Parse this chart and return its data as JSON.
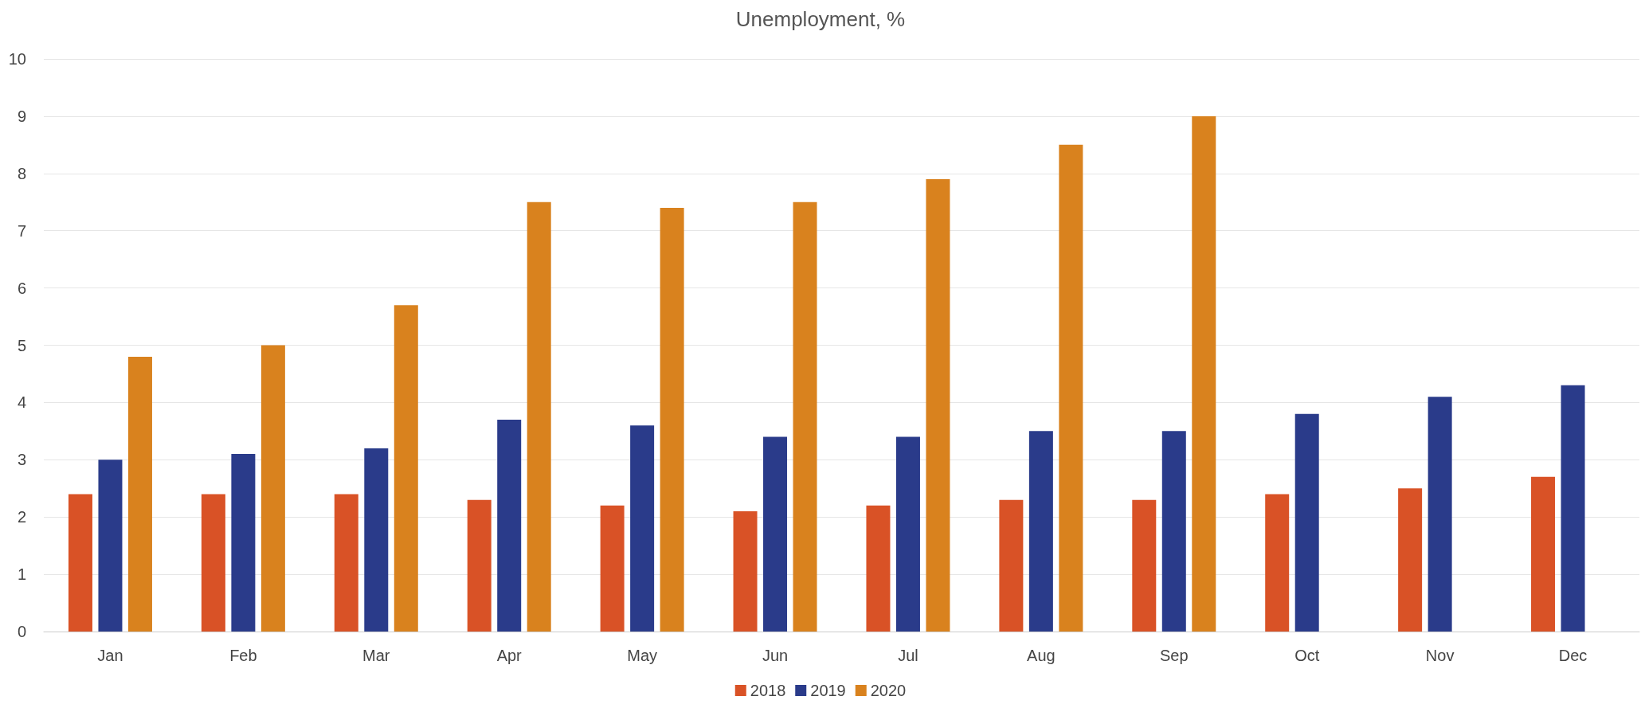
{
  "chart_data": {
    "type": "bar",
    "title": "Unemployment, %",
    "categories": [
      "Jan",
      "Feb",
      "Mar",
      "Apr",
      "May",
      "Jun",
      "Jul",
      "Aug",
      "Sep",
      "Oct",
      "Nov",
      "Dec"
    ],
    "series": [
      {
        "name": "2018",
        "color": "#d95226",
        "values": [
          2.4,
          2.4,
          2.4,
          2.3,
          2.2,
          2.1,
          2.2,
          2.3,
          2.3,
          2.4,
          2.5,
          2.7
        ]
      },
      {
        "name": "2019",
        "color": "#2a3b8a",
        "values": [
          3.0,
          3.1,
          3.2,
          3.7,
          3.6,
          3.4,
          3.4,
          3.5,
          3.5,
          3.8,
          4.1,
          4.3
        ]
      },
      {
        "name": "2020",
        "color": "#d9821e",
        "values": [
          4.8,
          5.0,
          5.7,
          7.5,
          7.4,
          7.5,
          7.9,
          8.5,
          9.0,
          null,
          null,
          null
        ]
      }
    ],
    "ylim": [
      0,
      10
    ],
    "yticks": [
      0,
      1,
      2,
      3,
      4,
      5,
      6,
      7,
      8,
      9,
      10
    ],
    "grid": "y",
    "legend": "bottom"
  }
}
